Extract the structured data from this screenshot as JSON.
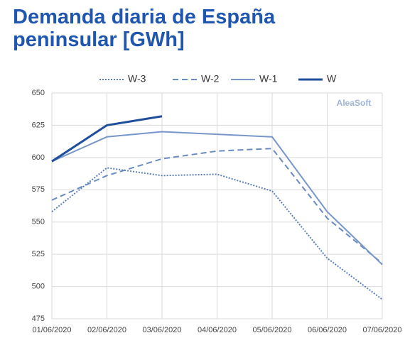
{
  "chart_data": {
    "type": "line",
    "title": "Demanda diaria de España peninsular [GWh]",
    "watermark": "AleaSoft",
    "categories": [
      "01/06/2020",
      "02/06/2020",
      "03/06/2020",
      "04/06/2020",
      "05/06/2020",
      "06/06/2020",
      "07/06/2020"
    ],
    "series": [
      {
        "name": "W-3",
        "color": "#5b7fb8",
        "dash": "dotted",
        "values": [
          558,
          592,
          586,
          587,
          574,
          522,
          490
        ]
      },
      {
        "name": "W-2",
        "color": "#6a8bc2",
        "dash": "dashed",
        "values": [
          567,
          586,
          599,
          605,
          607,
          553,
          518
        ]
      },
      {
        "name": "W-1",
        "color": "#7896c9",
        "dash": "solid",
        "values": [
          597,
          616,
          620,
          618,
          616,
          558,
          517
        ]
      },
      {
        "name": "W",
        "color": "#1f4e9a",
        "dash": "solid",
        "values": [
          597,
          625,
          632,
          null,
          null,
          null,
          null
        ]
      }
    ],
    "ylim": [
      475,
      650
    ],
    "yticks": [
      475,
      500,
      525,
      550,
      575,
      600,
      625,
      650
    ],
    "grid": true,
    "legend": "top"
  }
}
